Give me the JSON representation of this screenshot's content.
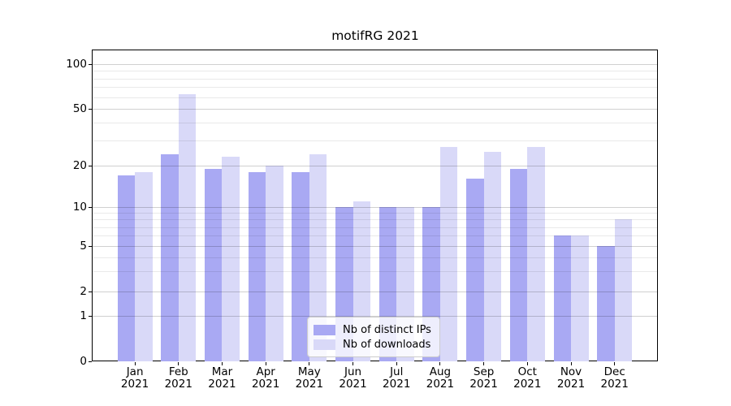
{
  "figure": {
    "title": "motifRG 2021",
    "background": "#ffffff"
  },
  "chart_data": {
    "type": "bar",
    "title": "motifRG 2021",
    "categories": [
      "Jan",
      "Feb",
      "Mar",
      "Apr",
      "May",
      "Jun",
      "Jul",
      "Aug",
      "Sep",
      "Oct",
      "Nov",
      "Dec"
    ],
    "category_year": "2021",
    "series": [
      {
        "name": "Nb of distinct IPs",
        "color": "#a9a9f3",
        "values": [
          17,
          24,
          19,
          18,
          18,
          10,
          10,
          10,
          16,
          19,
          6,
          5
        ]
      },
      {
        "name": "Nb of downloads",
        "color": "#d9d9f8",
        "values": [
          18,
          63,
          23,
          20,
          24,
          11,
          10,
          27,
          25,
          27,
          6,
          8
        ]
      }
    ],
    "xlabel": "",
    "ylabel": "",
    "yscale": "symlog",
    "ylim": [
      0,
      125
    ],
    "yticks": [
      0,
      1,
      2,
      5,
      10,
      20,
      50,
      100
    ],
    "yticks_minor": [
      3,
      4,
      6,
      7,
      8,
      9,
      30,
      40,
      60,
      70,
      80,
      90
    ],
    "grid": true,
    "legend_position": "lower-center"
  },
  "colors": {
    "major_grid": "#d0d0d0",
    "minor_grid": "#e9e9e9",
    "spine": "#000000"
  }
}
